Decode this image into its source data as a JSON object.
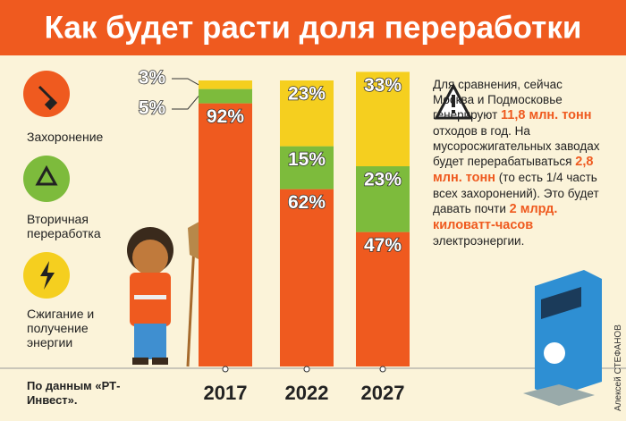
{
  "chart_data": {
    "type": "bar",
    "stacked": true,
    "title": "Как будет расти доля переработки",
    "categories": [
      "2017",
      "2022",
      "2027"
    ],
    "series": [
      {
        "name": "Захоронение",
        "color": "#ef5a1f",
        "values": [
          92,
          62,
          47
        ],
        "value_labels": [
          "92%",
          "62%",
          "47%"
        ]
      },
      {
        "name": "Вторичная переработка",
        "color": "#7dbb3c",
        "values": [
          5,
          15,
          23
        ],
        "value_labels": [
          "5%",
          "15%",
          "23%"
        ]
      },
      {
        "name": "Сжигание и получение энергии",
        "color": "#f5cf1f",
        "values": [
          3,
          23,
          33
        ],
        "value_labels": [
          "3%",
          "23%",
          "33%"
        ]
      }
    ],
    "source": "По данным «РТ-Инвест».",
    "credit": "Алексей СТЕФАНОВ"
  },
  "note": [
    {
      "text": "Для сравнения, сейчас Москва и Подмосковье генерируют ",
      "highlight": false
    },
    {
      "text": "11,8 млн. тонн",
      "highlight": true
    },
    {
      "text": " отходов в год. На мусоросжигательных заводах будет перерабатываться ",
      "highlight": false
    },
    {
      "text": "2,8 млн. тонн",
      "highlight": true
    },
    {
      "text": " (то есть 1/4 часть всех захоронений). Это будет давать почти ",
      "highlight": false
    },
    {
      "text": "2 млрд. киловатт-часов",
      "highlight": true
    },
    {
      "text": " электроэнергии.",
      "highlight": false
    }
  ]
}
